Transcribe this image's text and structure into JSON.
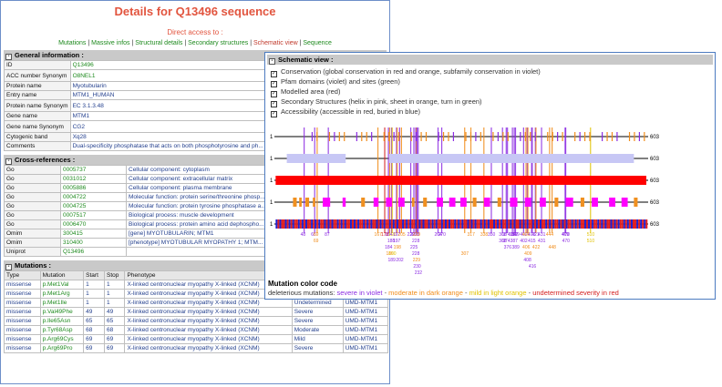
{
  "page": {
    "title": "Details for Q13496 sequence",
    "direct_access": "Direct access to :",
    "nav_links": [
      "Mutations",
      "Massive infos",
      "Structural details",
      "Secondary structures",
      "Schematic view",
      "Sequence"
    ],
    "current_nav": "Schematic view"
  },
  "general": {
    "heading": "General information :",
    "rows": [
      {
        "label": "ID",
        "value": "Q13496"
      },
      {
        "label": "ACC number Synonym",
        "value": "O8NEL1"
      },
      {
        "label": "Protein name",
        "value": "Myotubularin"
      },
      {
        "label": "Entry name",
        "value": "MTM1_HUMAN"
      },
      {
        "label": "Protein name Synonym",
        "value": "EC 3.1.3.48"
      },
      {
        "label": "Gene name",
        "value": "MTM1"
      },
      {
        "label": "Gene name Synonym",
        "value": "CG2"
      },
      {
        "label": "Cytogenic band",
        "value": "Xq28"
      },
      {
        "label": "Comments",
        "value": "Dual-specificity phosphatase that acts on both phosphotyrosine and ph... transduction pathway necessary for late myogenesis although its ubiqu..."
      }
    ]
  },
  "xrefs": {
    "heading": "Cross-references :",
    "rows": [
      {
        "db": "Go",
        "id": "0005737",
        "desc": "Cellular component: cytoplasm"
      },
      {
        "db": "Go",
        "id": "0031012",
        "desc": "Cellular component: extracellular matrix"
      },
      {
        "db": "Go",
        "id": "0005886",
        "desc": "Cellular component: plasma membrane"
      },
      {
        "db": "Go",
        "id": "0004722",
        "desc": "Molecular function: protein serine/threonine phosp..."
      },
      {
        "db": "Go",
        "id": "0004725",
        "desc": "Molecular function: protein tyrosine phosphatase a..."
      },
      {
        "db": "Go",
        "id": "0007517",
        "desc": "Biological process: muscle development"
      },
      {
        "db": "Go",
        "id": "0006470",
        "desc": "Biological process: protein amino acid dephospho..."
      },
      {
        "db": "Omim",
        "id": "300415",
        "desc": "[gene] MYOTUBULARIN; MTM1"
      },
      {
        "db": "Omim",
        "id": "310400",
        "desc": "[phenotype] MYOTUBULAR MYOPATHY 1; MTM..."
      },
      {
        "db": "Uniprot",
        "id": "Q13496",
        "desc": ""
      }
    ]
  },
  "mutations": {
    "heading": "Mutations :",
    "columns": [
      "Type",
      "Mutation",
      "Start",
      "Stop",
      "Phenotype",
      "Severity",
      "Reference"
    ],
    "rows": [
      [
        "missense",
        "p.Met1Val",
        "1",
        "1",
        "X-linked centronuclear myopathy X-linked (XCNM)",
        "Moderate",
        "UMD-MTM1"
      ],
      [
        "missense",
        "p.Met1Arg",
        "1",
        "1",
        "X-linked centronuclear myopathy X-linked (XCNM)",
        "Severe",
        "UMD-MTM1"
      ],
      [
        "missense",
        "p.Met1Ile",
        "1",
        "1",
        "X-linked centronuclear myopathy X-linked (XCNM)",
        "Undetermined",
        "UMD-MTM1"
      ],
      [
        "missense",
        "p.Val49Phe",
        "49",
        "49",
        "X-linked centronuclear myopathy X-linked (XCNM)",
        "Severe",
        "UMD-MTM1"
      ],
      [
        "missense",
        "p.Ile65Asn",
        "65",
        "65",
        "X-linked centronuclear myopathy X-linked (XCNM)",
        "Severe",
        "UMD-MTM1"
      ],
      [
        "missense",
        "p.Tyr68Asp",
        "68",
        "68",
        "X-linked centronuclear myopathy X-linked (XCNM)",
        "Moderate",
        "UMD-MTM1"
      ],
      [
        "missense",
        "p.Arg69Cys",
        "69",
        "69",
        "X-linked centronuclear myopathy X-linked (XCNM)",
        "Mild",
        "UMD-MTM1"
      ],
      [
        "missense",
        "p.Arg69Pro",
        "69",
        "69",
        "X-linked centronuclear myopathy X-linked (XCNM)",
        "Severe",
        "UMD-MTM1"
      ]
    ]
  },
  "schematic": {
    "heading": "Schematic view :",
    "checkboxes": [
      "Conservation (global conservation in red and orange, subfamily conservation in violet)",
      "Pfam domains (violet) and sites (green)",
      "Modelled area (red)",
      "Secondary Structures (helix in pink, sheet in orange, turn in green)",
      "Accessibility (accessible in red, buried in blue)"
    ],
    "start_label": "1",
    "end_label": "603",
    "position_labels": [
      "48",
      "65",
      "69",
      "87",
      "167",
      "178",
      "184",
      "190",
      "197",
      "205",
      "220",
      "225",
      "228",
      "229",
      "264",
      "270",
      "317",
      "338",
      "350",
      "368",
      "374",
      "384",
      "387",
      "389",
      "402",
      "406",
      "415",
      "421",
      "431",
      "444",
      "469",
      "470",
      "510"
    ],
    "position_labels_row2": [
      "69",
      "188",
      "197",
      "228",
      "368",
      "374387",
      "402",
      "415",
      "431",
      "470",
      "510"
    ],
    "position_labels_row3": [
      "184",
      "198",
      "225",
      "376",
      "389",
      "406",
      "422",
      "448"
    ],
    "position_labels_row4": [
      "186",
      "190",
      "228",
      "307",
      "409"
    ],
    "position_labels_row5": [
      "189",
      "202",
      "229",
      "408"
    ],
    "position_labels_row6": [
      "230",
      "416"
    ],
    "position_labels_row7": [
      "232"
    ],
    "legend_title": "Mutation color code",
    "legend_prefix": "deleterious mutations:",
    "legend_items": [
      {
        "text": "severe in violet",
        "color": "#8b2be2"
      },
      {
        "text": "moderate in dark orange",
        "color": "#f08c1a"
      },
      {
        "text": "mild in light orange",
        "color": "#e0c200"
      },
      {
        "text": "undetermined severity in red",
        "color": "#d42020"
      }
    ],
    "legend_sep": " - ",
    "colors": {
      "line": "#000000",
      "severe": "#8b2be2",
      "moderate": "#f08c1a",
      "mild": "#e0c200",
      "undetermined": "#d42020",
      "pfam": "#c7c7f5",
      "modelled": "#ff0000",
      "helix": "#ff00ff",
      "sheet": "#f09020",
      "turn": "#4aa84a",
      "accessible": "#e02020",
      "buried": "#2020d0"
    }
  }
}
